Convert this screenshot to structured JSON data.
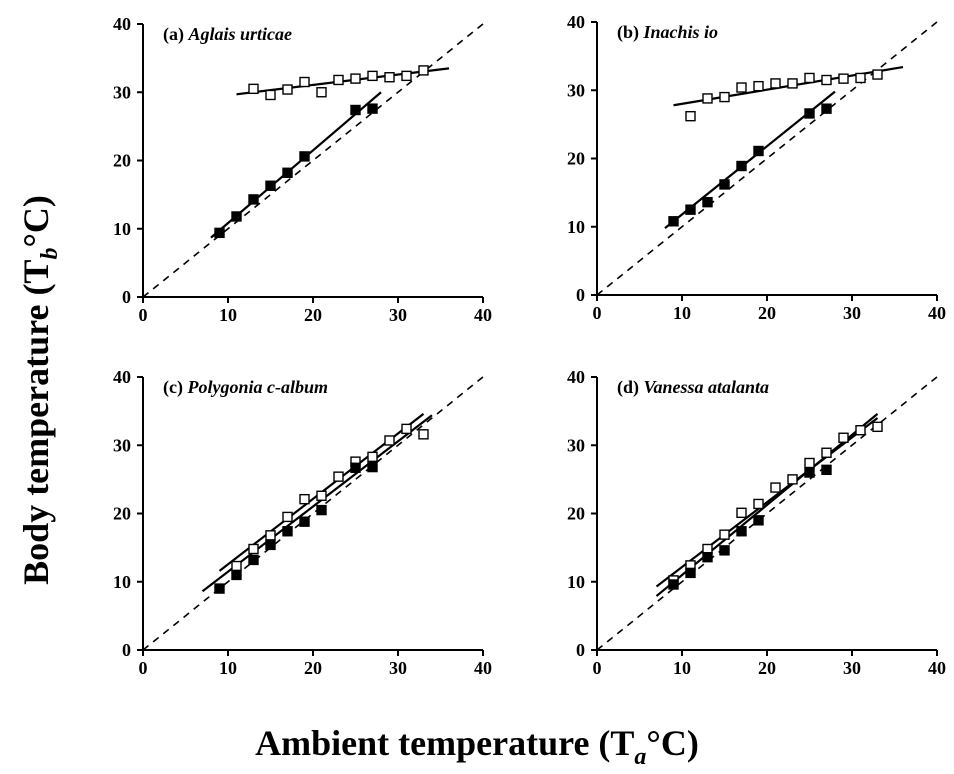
{
  "figure": {
    "ylabel": {
      "prefix": "Body temperature (T",
      "sub": "b",
      "suffix": "°C)"
    },
    "xlabel": {
      "prefix": "Ambient temperature (T",
      "sub": "a",
      "suffix": "°C)"
    }
  },
  "chart_data": [
    {
      "type": "scatter",
      "panel": "(a)",
      "species": "Aglais urticae",
      "xlim": [
        0,
        40
      ],
      "ylim": [
        0,
        40
      ],
      "xticks": [
        0,
        10,
        20,
        30,
        40
      ],
      "yticks": [
        0,
        10,
        20,
        30,
        40
      ],
      "grid": false,
      "reference_line": {
        "x": [
          0,
          40
        ],
        "y": [
          0,
          40
        ],
        "style": "dashed"
      },
      "series": [
        {
          "marker": "open-square",
          "x": [
            13,
            15,
            17,
            19,
            21,
            23,
            25,
            27,
            29,
            31,
            33
          ],
          "y": [
            30.5,
            29.6,
            30.4,
            31.5,
            30.0,
            31.8,
            32.0,
            32.4,
            32.2,
            32.4,
            33.2
          ],
          "fit": {
            "x": [
              11,
              36
            ],
            "y": [
              29.7,
              33.5
            ]
          }
        },
        {
          "marker": "filled-square",
          "x": [
            9,
            11,
            13,
            15,
            17,
            19,
            25,
            27
          ],
          "y": [
            9.4,
            11.8,
            14.3,
            16.3,
            18.2,
            20.6,
            27.4,
            27.6
          ],
          "fit": {
            "x": [
              8,
              28
            ],
            "y": [
              8.7,
              30.0
            ]
          }
        }
      ]
    },
    {
      "type": "scatter",
      "panel": "(b)",
      "species": "Inachis io",
      "xlim": [
        0,
        40
      ],
      "ylim": [
        0,
        40
      ],
      "xticks": [
        0,
        10,
        20,
        30,
        40
      ],
      "yticks": [
        0,
        10,
        20,
        30,
        40
      ],
      "grid": false,
      "reference_line": {
        "x": [
          0,
          40
        ],
        "y": [
          0,
          40
        ],
        "style": "dashed"
      },
      "series": [
        {
          "marker": "open-square",
          "x": [
            11,
            13,
            15,
            17,
            19,
            21,
            23,
            25,
            27,
            29,
            31,
            33
          ],
          "y": [
            26.2,
            28.8,
            29.0,
            30.4,
            30.6,
            31.0,
            31.0,
            31.8,
            31.5,
            31.7,
            31.8,
            32.3
          ],
          "fit": {
            "x": [
              9,
              36
            ],
            "y": [
              27.8,
              33.4
            ]
          }
        },
        {
          "marker": "filled-square",
          "x": [
            9,
            11,
            13,
            15,
            17,
            19,
            25,
            27
          ],
          "y": [
            10.8,
            12.5,
            13.6,
            16.2,
            18.9,
            21.1,
            26.6,
            27.3
          ],
          "fit": {
            "x": [
              8,
              28
            ],
            "y": [
              9.8,
              29.8
            ]
          }
        }
      ]
    },
    {
      "type": "scatter",
      "panel": "(c)",
      "species": "Polygonia c-album",
      "xlim": [
        0,
        40
      ],
      "ylim": [
        0,
        40
      ],
      "xticks": [
        0,
        10,
        20,
        30,
        40
      ],
      "yticks": [
        0,
        10,
        20,
        30,
        40
      ],
      "grid": false,
      "reference_line": {
        "x": [
          0,
          40
        ],
        "y": [
          0,
          40
        ],
        "style": "dashed"
      },
      "series": [
        {
          "marker": "open-square",
          "x": [
            11,
            13,
            15,
            17,
            19,
            21,
            23,
            25,
            27,
            29,
            31,
            33
          ],
          "y": [
            12.3,
            14.8,
            16.8,
            19.5,
            22.1,
            22.6,
            25.4,
            27.6,
            28.3,
            30.7,
            32.4,
            31.6
          ],
          "fit": {
            "x": [
              9,
              33
            ],
            "y": [
              11.6,
              34.6
            ]
          }
        },
        {
          "marker": "filled-square",
          "x": [
            9,
            11,
            13,
            15,
            17,
            19,
            21,
            25,
            27
          ],
          "y": [
            9.0,
            11.0,
            13.2,
            15.4,
            17.4,
            18.8,
            20.5,
            26.7,
            26.8
          ],
          "fit": {
            "x": [
              7,
              34
            ],
            "y": [
              8.6,
              34.4
            ]
          }
        }
      ]
    },
    {
      "type": "scatter",
      "panel": "(d)",
      "species": "Vanessa atalanta",
      "xlim": [
        0,
        40
      ],
      "ylim": [
        0,
        40
      ],
      "xticks": [
        0,
        10,
        20,
        30,
        40
      ],
      "yticks": [
        0,
        10,
        20,
        30,
        40
      ],
      "grid": false,
      "reference_line": {
        "x": [
          0,
          40
        ],
        "y": [
          0,
          40
        ],
        "style": "dashed"
      },
      "series": [
        {
          "marker": "open-square",
          "x": [
            9,
            11,
            13,
            15,
            17,
            19,
            21,
            23,
            25,
            27,
            29,
            31,
            33
          ],
          "y": [
            10.2,
            12.4,
            14.8,
            16.9,
            20.1,
            21.4,
            23.8,
            25.0,
            27.4,
            28.9,
            31.1,
            32.2,
            32.7
          ],
          "fit": {
            "x": [
              7,
              33
            ],
            "y": [
              9.3,
              34.0
            ]
          }
        },
        {
          "marker": "filled-square",
          "x": [
            9,
            11,
            13,
            15,
            17,
            19,
            25,
            27
          ],
          "y": [
            9.6,
            11.3,
            13.6,
            14.6,
            17.4,
            19.0,
            26.0,
            26.4
          ],
          "fit": {
            "x": [
              7,
              33
            ],
            "y": [
              7.9,
              34.6
            ]
          }
        }
      ]
    }
  ]
}
